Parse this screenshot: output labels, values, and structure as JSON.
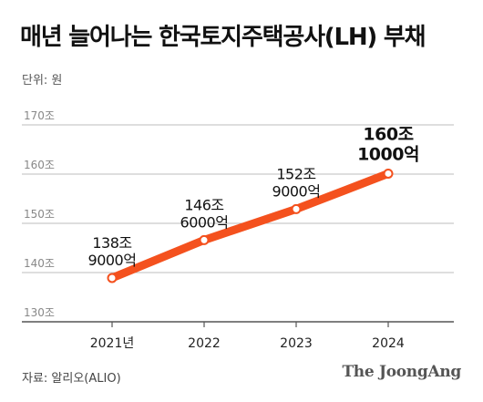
{
  "header": {
    "title": "매년 늘어나는 한국토지주택공사(LH) 부채",
    "unit_label": "단위: 원"
  },
  "footer": {
    "source": "자료: 알리오(ALIO)",
    "brand": "The JoongAng"
  },
  "colors": {
    "line": "#f4511e",
    "grid": "#bdbdbd",
    "axis": "#555555",
    "tick_text": "#888888",
    "marker_fill": "#ffffff"
  },
  "chart_data": {
    "type": "line",
    "title": "매년 늘어나는 한국토지주택공사(LH) 부채",
    "ylabel": "단위: 원",
    "categories": [
      "2021년",
      "2022",
      "2023",
      "2024"
    ],
    "x": [
      2021,
      2022,
      2023,
      2024
    ],
    "ylim": [
      130,
      170
    ],
    "yticks": [
      {
        "value": 130,
        "label": "130조"
      },
      {
        "value": 140,
        "label": "140조"
      },
      {
        "value": 150,
        "label": "150조"
      },
      {
        "value": 160,
        "label": "160조"
      },
      {
        "value": 170,
        "label": "170조"
      }
    ],
    "grid": true,
    "series": [
      {
        "values": [
          138.9,
          146.6,
          152.9,
          160.1
        ],
        "labels": [
          [
            "138조",
            "9000억"
          ],
          [
            "146조",
            "6000억"
          ],
          [
            "152조",
            "9000억"
          ],
          [
            "160조",
            "1000억"
          ]
        ]
      }
    ]
  }
}
